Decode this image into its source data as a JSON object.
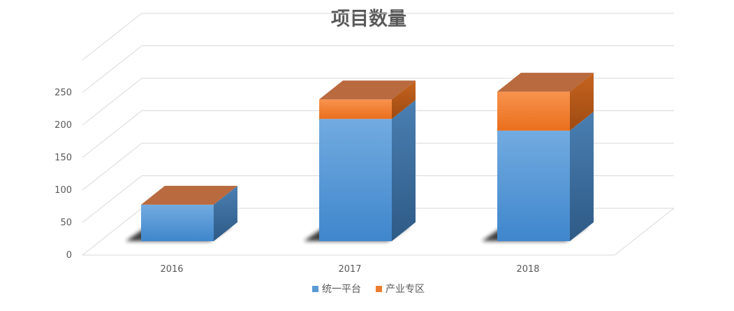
{
  "chart_data": {
    "type": "bar",
    "stacked": true,
    "three_d": true,
    "title": "项目数量",
    "categories": [
      "2016",
      "2017",
      "2018"
    ],
    "series": [
      {
        "name": "统一平台",
        "values": [
          56,
          188,
          170
        ]
      },
      {
        "name": "产业专区",
        "values": [
          0,
          30,
          60
        ]
      }
    ],
    "ylim": [
      0,
      250
    ],
    "yticks": [
      0,
      50,
      100,
      150,
      200,
      250
    ],
    "grid": true,
    "legend": "bottom",
    "colors": {
      "series0_front": "#5b9bd5",
      "series0_side": "#3d6e9c",
      "series1_front": "#ed7d31",
      "series1_side": "#b5571c",
      "top": "#b96a3f",
      "grid": "#d9d9d9",
      "text": "#595959"
    }
  }
}
